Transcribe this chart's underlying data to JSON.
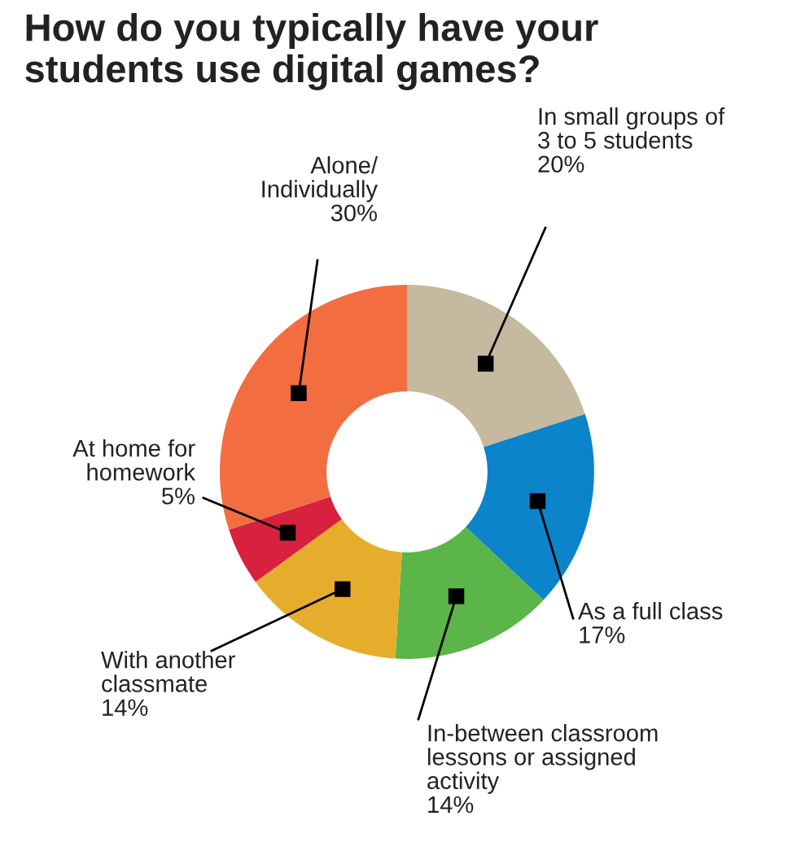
{
  "chart_data": {
    "type": "donut",
    "title": "How do you typically have your\nstudents use digital games?",
    "categories": [
      "In small groups of\n3 to 5 students",
      "As a full class",
      "In-between classroom\nlessons or assigned\nactivity",
      "With another\nclassmate",
      "At home for\nhomework",
      "Alone/\nIndividually"
    ],
    "values": [
      20,
      17,
      14,
      14,
      5,
      30
    ],
    "colors": [
      "#c5b9a0",
      "#0b84c9",
      "#5bb548",
      "#e6ad2c",
      "#d8213f",
      "#f26e40"
    ],
    "value_labels": [
      "20%",
      "17%",
      "14%",
      "14%",
      "5%",
      "30%"
    ]
  }
}
